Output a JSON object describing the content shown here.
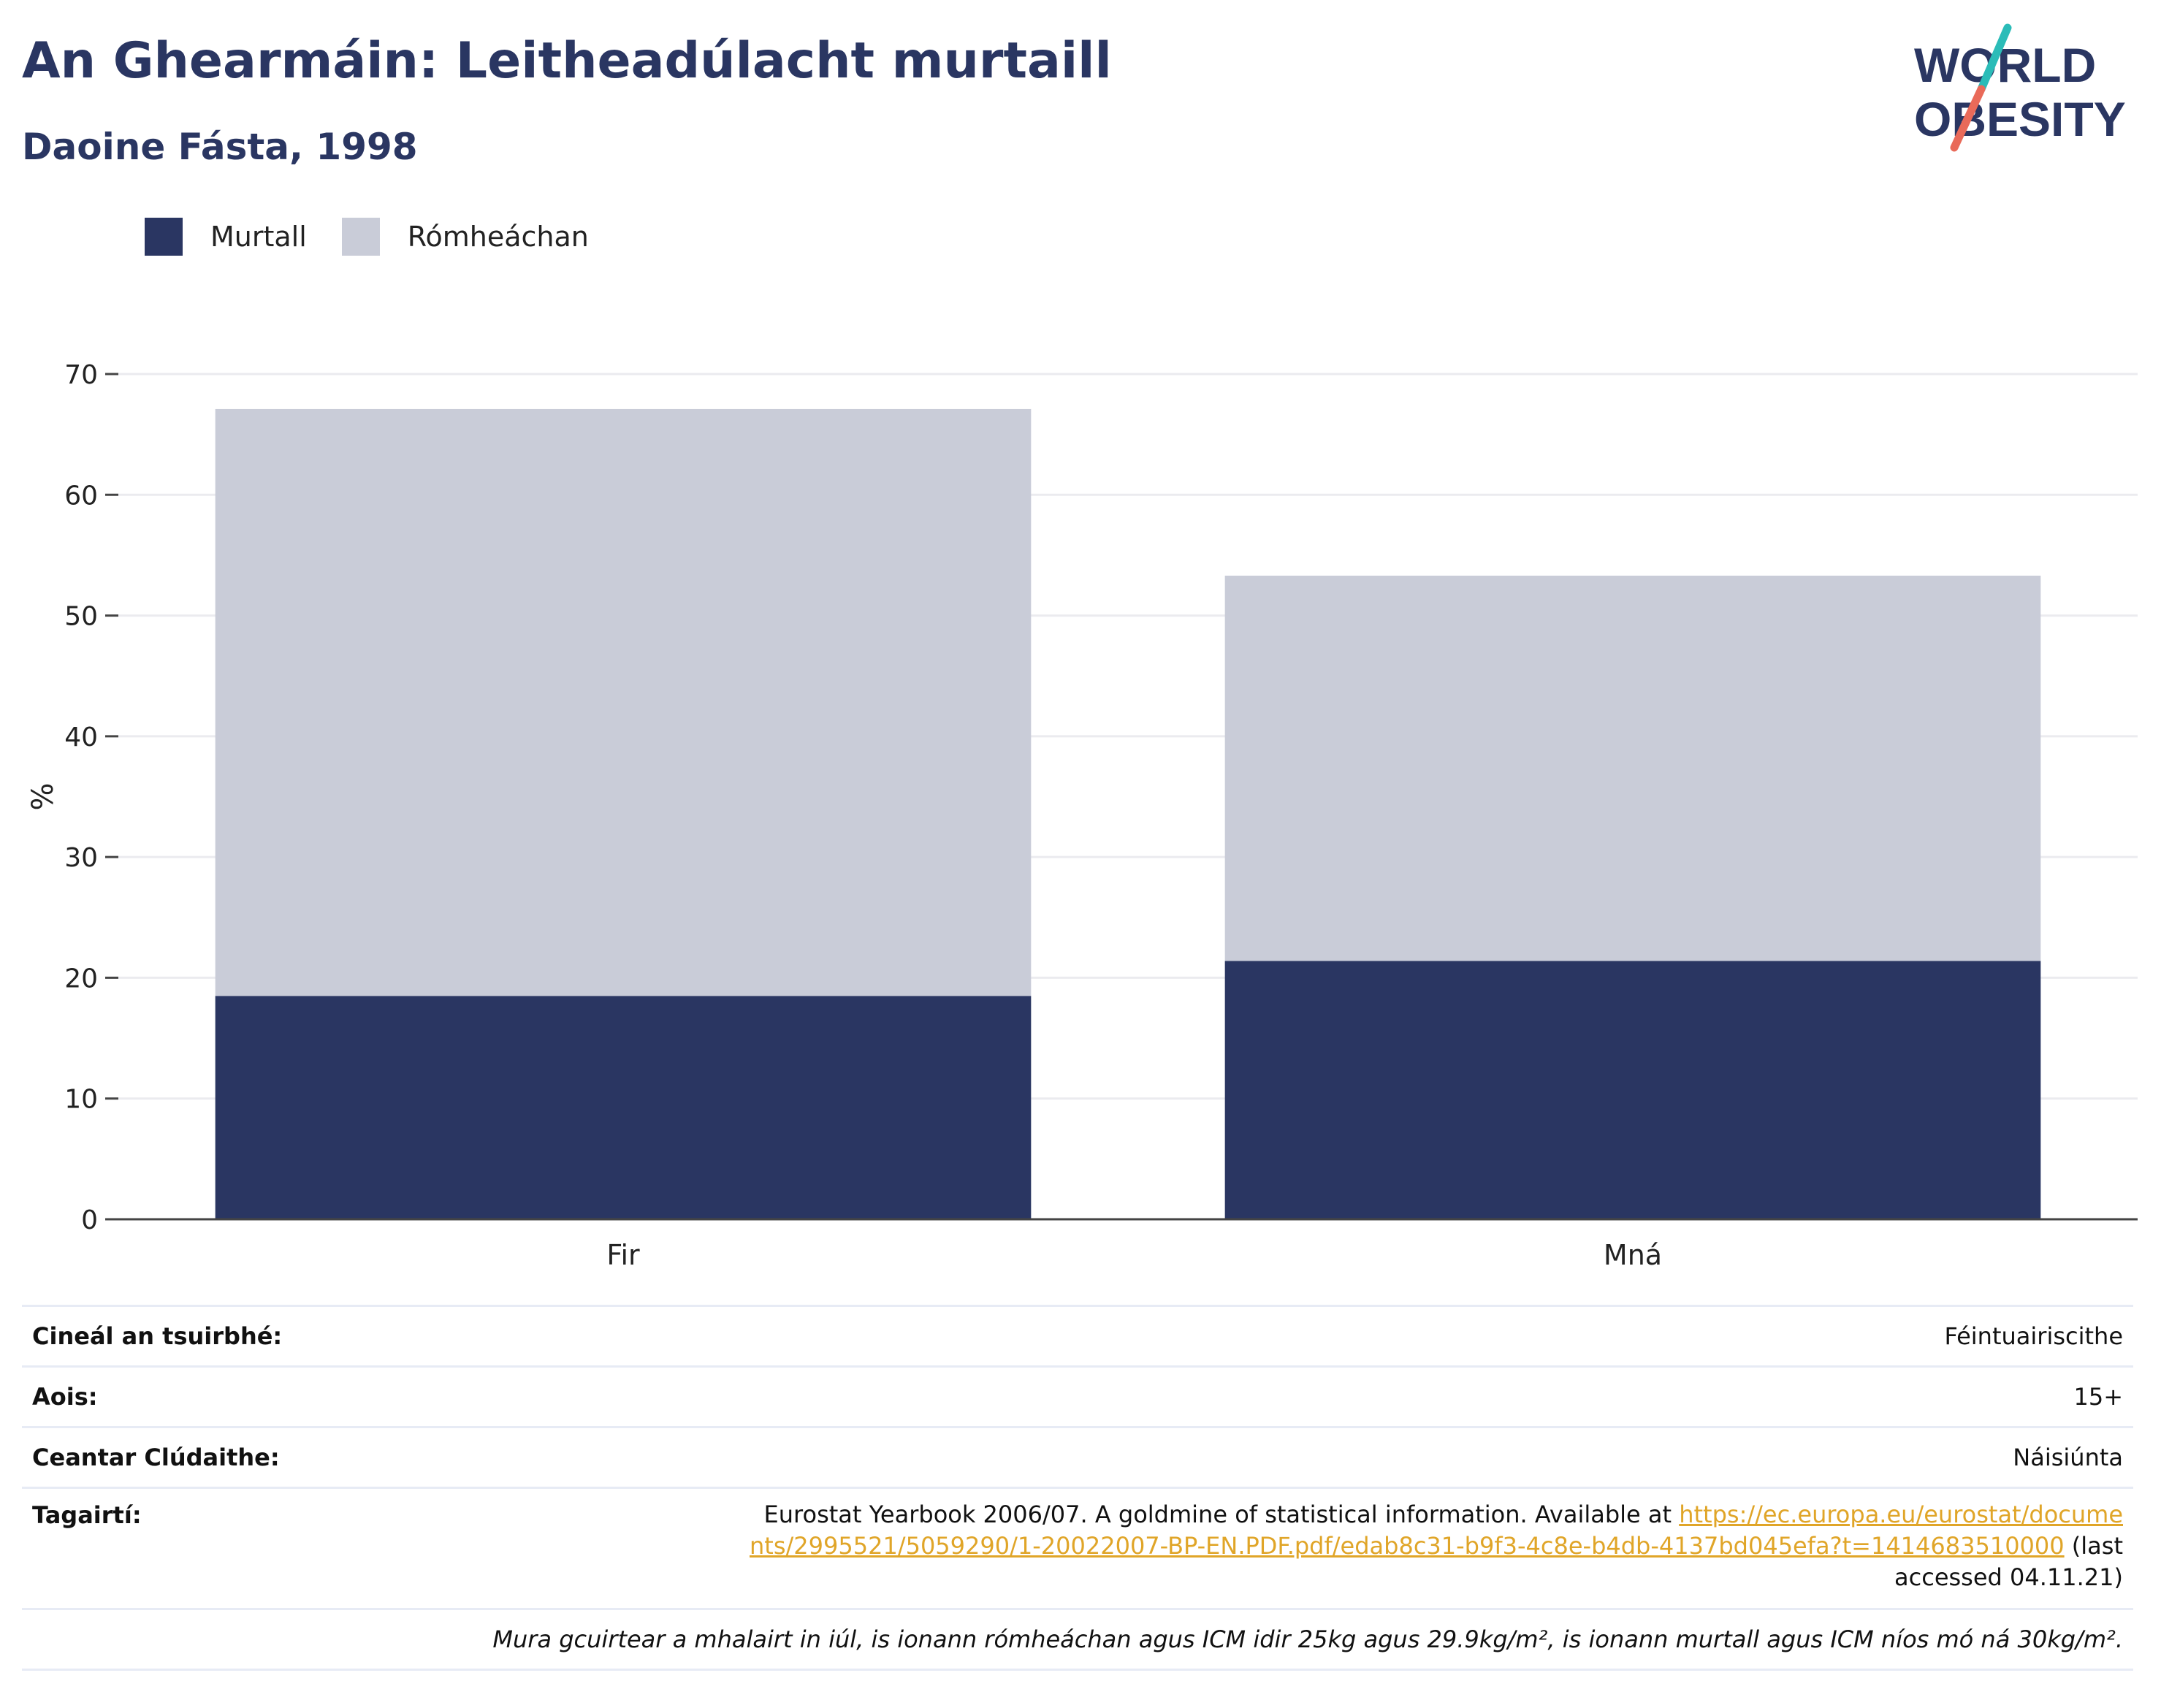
{
  "title": "An Ghearmáin: Leitheadúlacht murtaill",
  "subtitle": "Daoine Fásta, 1998",
  "logo": {
    "line1": "WORLD",
    "line2": "OBESITY"
  },
  "colors": {
    "obese": "#2a3662",
    "overweight": "#c9ccd8",
    "accent_teal": "#2bbcb8",
    "accent_coral": "#e96a59"
  },
  "legend": [
    {
      "label": "Murtall",
      "color": "#2a3662"
    },
    {
      "label": "Rómheáchan",
      "color": "#c9ccd8"
    }
  ],
  "chart_data": {
    "type": "bar",
    "stacked": true,
    "categories": [
      "Fir",
      "Mná"
    ],
    "series": [
      {
        "name": "Murtall",
        "values": [
          18.5,
          21.4
        ]
      },
      {
        "name": "Rómheáchan",
        "values": [
          48.6,
          31.9
        ]
      }
    ],
    "ylabel": "%",
    "ylim": [
      0,
      70
    ],
    "yticks": [
      0,
      10,
      20,
      30,
      40,
      50,
      60,
      70
    ],
    "grid": true,
    "legend_position": "top-left"
  },
  "info": {
    "survey_type_label": "Cineál an tsuirbhé:",
    "survey_type_value": "Féintuairiscithe",
    "age_label": "Aois:",
    "age_value": "15+",
    "area_label": "Ceantar Clúdaithe:",
    "area_value": "Náisiúnta",
    "references_label": "Tagairtí:",
    "references_text": "Eurostat Yearbook 2006/07. A goldmine of statistical information. Available at",
    "references_link": "https://ec.europa.eu/eurostat/documents/2995521/5059290/1-20022007-BP-EN.PDF.pdf/edab8c31-b9f3-4c8e-b4db-4137bd045efa?t=1414683510000",
    "references_suffix": "(last accessed 04.11.21)",
    "footnote": "Mura gcuirtear a mhalairt in iúl, is ionann rómheáchan agus ICM idir 25kg agus 29.9kg/m², is ionann murtall agus ICM níos mó ná 30kg/m²."
  }
}
